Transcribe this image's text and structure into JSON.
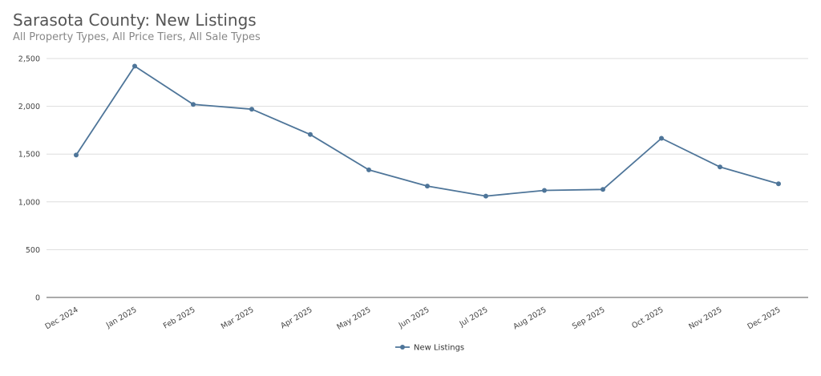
{
  "chart_data": {
    "type": "line",
    "title": "Sarasota County: New Listings",
    "subtitle": "All Property Types, All Price Tiers, All Sale Types",
    "xlabel": "",
    "ylabel": "",
    "categories": [
      "Dec 2024",
      "Jan 2025",
      "Feb 2025",
      "Mar 2025",
      "Apr 2025",
      "May 2025",
      "Jun 2025",
      "Jul 2025",
      "Aug 2025",
      "Sep 2025",
      "Oct 2025",
      "Nov 2025",
      "Dec 2025"
    ],
    "series": [
      {
        "name": "New Listings",
        "color": "#4e7599",
        "values": [
          1490,
          2420,
          2020,
          1970,
          1705,
          1335,
          1165,
          1060,
          1120,
          1130,
          1665,
          1365,
          1190
        ]
      }
    ],
    "ylim": [
      0,
      2500
    ],
    "yticks": [
      0,
      500,
      1000,
      1500,
      2000,
      2500
    ],
    "ytick_labels": [
      "0",
      "500",
      "1,000",
      "1,500",
      "2,000",
      "2,500"
    ],
    "grid": true,
    "legend_position": "bottom-center"
  }
}
